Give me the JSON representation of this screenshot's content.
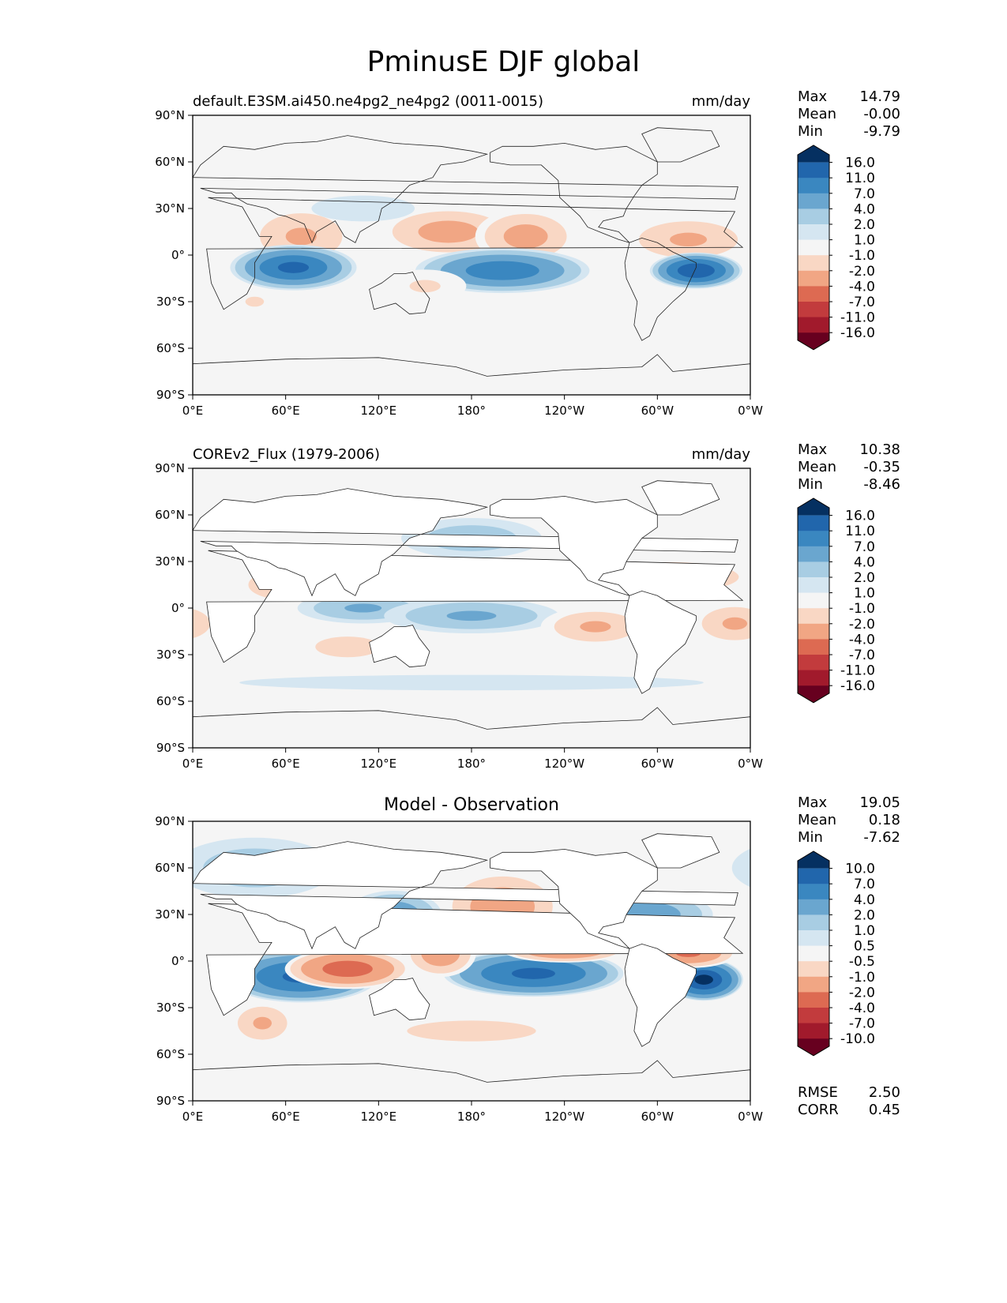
{
  "title": "PminusE DJF global",
  "panels": [
    {
      "id": "model",
      "title_left": "default.E3SM.ai450.ne4pg2_ne4pg2 (0011-0015)",
      "title_right": "mm/day",
      "title_center": "",
      "stats": [
        {
          "label": "Max",
          "value": "14.79"
        },
        {
          "label": "Mean",
          "value": "-0.00"
        },
        {
          "label": "Min",
          "value": "-9.79"
        }
      ],
      "colorbar_levels": [
        "16.0",
        "11.0",
        "7.0",
        "4.0",
        "2.0",
        "1.0",
        "-1.0",
        "-2.0",
        "-4.0",
        "-7.0",
        "-11.0",
        "-16.0"
      ]
    },
    {
      "id": "obs",
      "title_left": "COREv2_Flux (1979-2006)",
      "title_right": "mm/day",
      "title_center": "",
      "stats": [
        {
          "label": "Max",
          "value": "10.38"
        },
        {
          "label": "Mean",
          "value": "-0.35"
        },
        {
          "label": "Min",
          "value": "-8.46"
        }
      ],
      "colorbar_levels": [
        "16.0",
        "11.0",
        "7.0",
        "4.0",
        "2.0",
        "1.0",
        "-1.0",
        "-2.0",
        "-4.0",
        "-7.0",
        "-11.0",
        "-16.0"
      ]
    },
    {
      "id": "diff",
      "title_left": "",
      "title_right": "",
      "title_center": "Model - Observation",
      "stats": [
        {
          "label": "Max",
          "value": "19.05"
        },
        {
          "label": "Mean",
          "value": "0.18"
        },
        {
          "label": "Min",
          "value": "-7.62"
        }
      ],
      "extra_stats": [
        {
          "label": "RMSE",
          "value": "2.50"
        },
        {
          "label": "CORR",
          "value": "0.45"
        }
      ],
      "colorbar_levels": [
        "10.0",
        "7.0",
        "4.0",
        "2.0",
        "1.0",
        "0.5",
        "-0.5",
        "-1.0",
        "-2.0",
        "-4.0",
        "-7.0",
        "-10.0"
      ]
    }
  ],
  "x_ticks": [
    "0°E",
    "60°E",
    "120°E",
    "180°",
    "120°W",
    "60°W",
    "0°W"
  ],
  "y_ticks": [
    "90°N",
    "60°N",
    "30°N",
    "0°",
    "30°S",
    "60°S",
    "90°S"
  ],
  "colormap": [
    "#053061",
    "#2166ac",
    "#3a87c0",
    "#6aa6cf",
    "#a8cde3",
    "#d5e6f1",
    "#f5f5f5",
    "#f9d7c4",
    "#f1a684",
    "#dd6a52",
    "#c23b3d",
    "#a11a2c",
    "#67001f"
  ],
  "chart_data": [
    {
      "type": "heatmap",
      "title": "default.E3SM.ai450.ne4pg2_ne4pg2 (0011-0015)",
      "units": "mm/day",
      "xlim": [
        0,
        360
      ],
      "ylim": [
        -90,
        90
      ],
      "blobs": [
        {
          "lon": 65,
          "lat": 15,
          "rx": 12,
          "ry": 7,
          "value": -9
        },
        {
          "lon": 70,
          "lat": 12,
          "rx": 25,
          "ry": 14,
          "value": -4
        },
        {
          "lon": 165,
          "lat": 15,
          "rx": 30,
          "ry": 11,
          "value": -5
        },
        {
          "lon": 215,
          "lat": 12,
          "rx": 22,
          "ry": 12,
          "value": -5
        },
        {
          "lon": 320,
          "lat": 10,
          "rx": 30,
          "ry": 11,
          "value": -4
        },
        {
          "lon": 65,
          "lat": -8,
          "rx": 25,
          "ry": 9,
          "value": 11
        },
        {
          "lon": 200,
          "lat": -10,
          "rx": 35,
          "ry": 9,
          "value": 9
        },
        {
          "lon": 325,
          "lat": -10,
          "rx": 18,
          "ry": 7,
          "value": 14
        },
        {
          "lon": 150,
          "lat": -20,
          "rx": 25,
          "ry": 10,
          "value": -2
        },
        {
          "lon": 40,
          "lat": -30,
          "rx": 15,
          "ry": 8,
          "value": -2
        },
        {
          "lon": 110,
          "lat": 30,
          "rx": 40,
          "ry": 10,
          "value": 1.5
        }
      ]
    },
    {
      "type": "heatmap",
      "title": "COREv2_Flux (1979-2006)",
      "units": "mm/day",
      "xlim": [
        0,
        360
      ],
      "ylim": [
        -90,
        90
      ],
      "blobs": [
        {
          "lon": 180,
          "lat": 45,
          "rx": 35,
          "ry": 10,
          "value": 3
        },
        {
          "lon": 170,
          "lat": 20,
          "rx": 45,
          "ry": 9,
          "value": -3
        },
        {
          "lon": 310,
          "lat": 20,
          "rx": 40,
          "ry": 9,
          "value": -4
        },
        {
          "lon": 60,
          "lat": 15,
          "rx": 20,
          "ry": 8,
          "value": -5
        },
        {
          "lon": 110,
          "lat": 0,
          "rx": 30,
          "ry": 7,
          "value": 4
        },
        {
          "lon": 180,
          "lat": -5,
          "rx": 40,
          "ry": 8,
          "value": 4
        },
        {
          "lon": 260,
          "lat": -12,
          "rx": 25,
          "ry": 9,
          "value": -4
        },
        {
          "lon": 350,
          "lat": -10,
          "rx": 20,
          "ry": 10,
          "value": -4
        },
        {
          "lon": 100,
          "lat": -25,
          "rx": 25,
          "ry": 8,
          "value": -3
        },
        {
          "lon": 180,
          "lat": -48,
          "rx": 180,
          "ry": 6,
          "value": 1.5
        }
      ]
    },
    {
      "type": "heatmap",
      "title": "Model - Observation",
      "units": "mm/day",
      "xlim": [
        0,
        360
      ],
      "ylim": [
        -90,
        90
      ],
      "blobs": [
        {
          "lon": 70,
          "lat": -10,
          "rx": 30,
          "ry": 10,
          "value": 7
        },
        {
          "lon": 220,
          "lat": -8,
          "rx": 35,
          "ry": 9,
          "value": 7
        },
        {
          "lon": 330,
          "lat": -12,
          "rx": 15,
          "ry": 8,
          "value": 10
        },
        {
          "lon": 100,
          "lat": -5,
          "rx": 25,
          "ry": 8,
          "value": -5
        },
        {
          "lon": 200,
          "lat": 35,
          "rx": 25,
          "ry": 15,
          "value": -3
        },
        {
          "lon": 240,
          "lat": 7,
          "rx": 25,
          "ry": 5,
          "value": -4
        },
        {
          "lon": 320,
          "lat": 5,
          "rx": 20,
          "ry": 6,
          "value": -4
        },
        {
          "lon": 160,
          "lat": 5,
          "rx": 15,
          "ry": 10,
          "value": -3
        },
        {
          "lon": 130,
          "lat": 30,
          "rx": 20,
          "ry": 10,
          "value": 3
        },
        {
          "lon": 290,
          "lat": 30,
          "rx": 30,
          "ry": 10,
          "value": 3
        },
        {
          "lon": 45,
          "lat": -40,
          "rx": 15,
          "ry": 10,
          "value": -2
        },
        {
          "lon": 180,
          "lat": -45,
          "rx": 50,
          "ry": 8,
          "value": -1.5
        },
        {
          "lon": 40,
          "lat": 60,
          "rx": 40,
          "ry": 15,
          "value": 1.5
        }
      ]
    }
  ]
}
